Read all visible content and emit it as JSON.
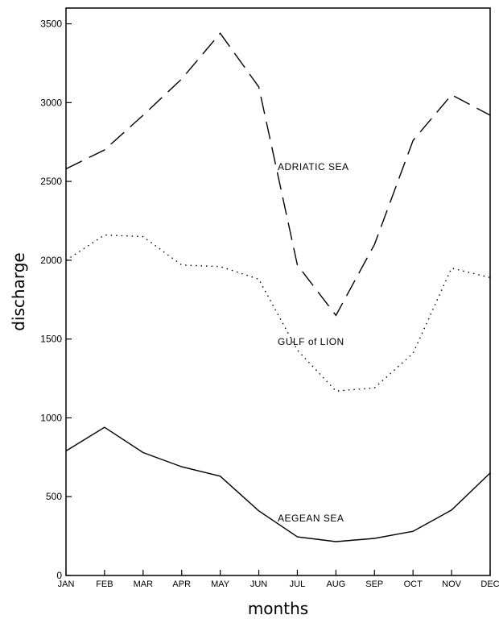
{
  "chart_data": {
    "type": "line",
    "title": "",
    "xlabel": "months",
    "ylabel": "discharge",
    "categories": [
      "JAN",
      "FEB",
      "MAR",
      "APR",
      "MAY",
      "JUN",
      "JUL",
      "AUG",
      "SEP",
      "OCT",
      "NOV",
      "DEC"
    ],
    "ylim": [
      0,
      3600
    ],
    "yticks": [
      0,
      500,
      1000,
      1500,
      2000,
      2500,
      3000,
      3500
    ],
    "grid": false,
    "series": [
      {
        "name": "ADRIATIC SEA",
        "style": "dashed",
        "values": [
          2580,
          2700,
          2920,
          3150,
          3440,
          3100,
          1970,
          1650,
          2100,
          2760,
          3050,
          2920
        ]
      },
      {
        "name": "GULF of LION",
        "style": "dotted",
        "values": [
          2000,
          2160,
          2150,
          1970,
          1960,
          1880,
          1430,
          1170,
          1190,
          1410,
          1950,
          1890
        ]
      },
      {
        "name": "AEGEAN SEA",
        "style": "solid",
        "values": [
          790,
          940,
          780,
          690,
          630,
          410,
          245,
          215,
          235,
          280,
          415,
          650
        ]
      }
    ]
  }
}
